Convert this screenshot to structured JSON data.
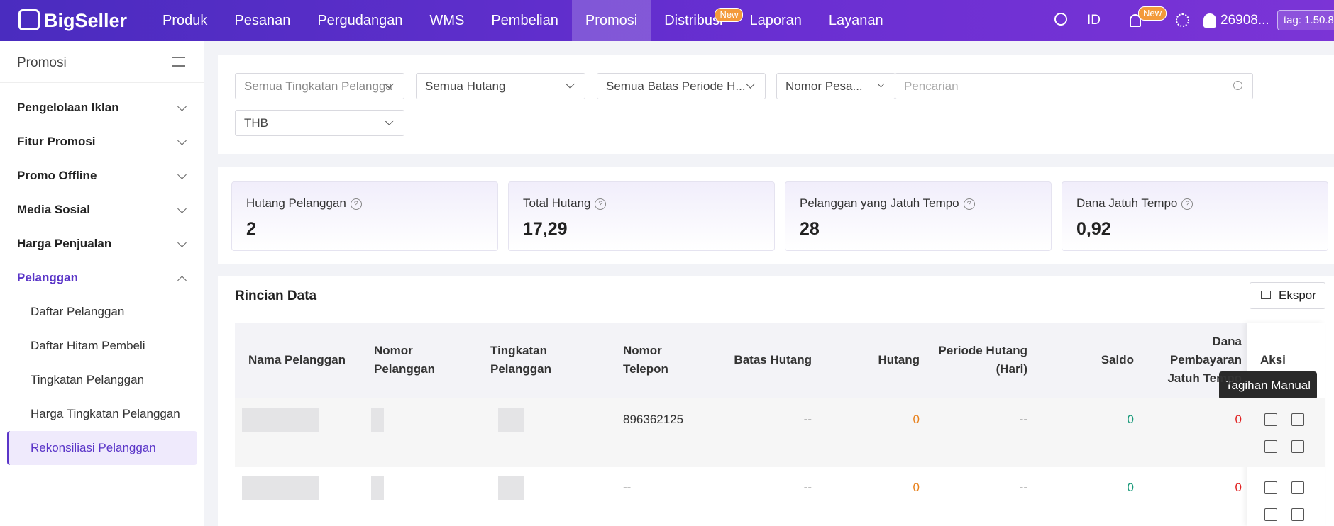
{
  "nav": {
    "logo": "BigSeller",
    "items": [
      "Produk",
      "Pesanan",
      "Pergudangan",
      "WMS",
      "Pembelian",
      "Promosi",
      "Distribusi",
      "Laporan",
      "Layanan"
    ],
    "active": 5,
    "distribusi_badge": "New",
    "lang": "ID",
    "bell_badge": "New",
    "user": "26908...",
    "tag": "tag: 1.50.8"
  },
  "sidebar": {
    "title": "Promosi",
    "groups": [
      "Pengelolaan Iklan",
      "Fitur Promosi",
      "Promo Offline",
      "Media Sosial",
      "Harga Penjualan",
      "Pelanggan"
    ],
    "items": [
      "Daftar Pelanggan",
      "Daftar Hitam Pembeli",
      "Tingkatan Pelanggan",
      "Harga Tingkatan Pelanggan",
      "Rekonsiliasi Pelanggan"
    ]
  },
  "filters": {
    "level": "Semua Tingkatan Pelangga",
    "debt": "Semua Hutang",
    "period": "Semua Batas Periode H...",
    "search_field": "Nomor Pesa...",
    "search_placeholder": "Pencarian",
    "currency": "THB"
  },
  "stats": [
    {
      "label": "Hutang Pelanggan",
      "value": "2"
    },
    {
      "label": "Total Hutang",
      "value": "17,29"
    },
    {
      "label": "Pelanggan yang Jatuh Tempo",
      "value": "28"
    },
    {
      "label": "Dana Jatuh Tempo",
      "value": "0,92"
    }
  ],
  "table": {
    "title": "Rincian Data",
    "export": "Ekspor",
    "columns": [
      "Nama Pelanggan",
      "Nomor Pelanggan",
      "Tingkatan Pelanggan",
      "Nomor Telepon",
      "Batas Hutang",
      "Hutang",
      "Periode Hutang (Hari)",
      "Saldo",
      "Dana Pembayaran Jatuh Tempo",
      "Aksi"
    ],
    "rows": [
      {
        "phone": "896362125",
        "limit": "--",
        "debt": "0",
        "period": "--",
        "balance": "0",
        "due": "0"
      },
      {
        "phone": "--",
        "limit": "--",
        "debt": "0",
        "period": "--",
        "balance": "0",
        "due": "0"
      }
    ],
    "tooltip": "Tagihan Manual"
  }
}
